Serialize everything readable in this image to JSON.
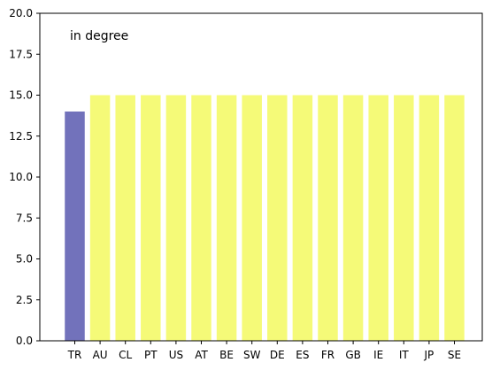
{
  "chart_data": {
    "type": "bar",
    "annotation": "in degree",
    "categories": [
      "TR",
      "AU",
      "CL",
      "PT",
      "US",
      "AT",
      "BE",
      "SW",
      "DE",
      "ES",
      "FR",
      "GB",
      "IE",
      "IT",
      "JP",
      "SE"
    ],
    "values": [
      14,
      15,
      15,
      15,
      15,
      15,
      15,
      15,
      15,
      15,
      15,
      15,
      15,
      15,
      15,
      15
    ],
    "ylim": [
      0,
      20
    ],
    "yticks": [
      0,
      2.5,
      5,
      7.5,
      10,
      12.5,
      15,
      17.5,
      20
    ],
    "ytick_labels": [
      "0.0",
      "2.5",
      "5.0",
      "7.5",
      "10.0",
      "12.5",
      "15.0",
      "17.5",
      "20.0"
    ],
    "grid": false,
    "colors": {
      "highlight": "#7272bb",
      "default": "#f5fa78"
    },
    "highlight_categories": [
      "TR"
    ]
  }
}
